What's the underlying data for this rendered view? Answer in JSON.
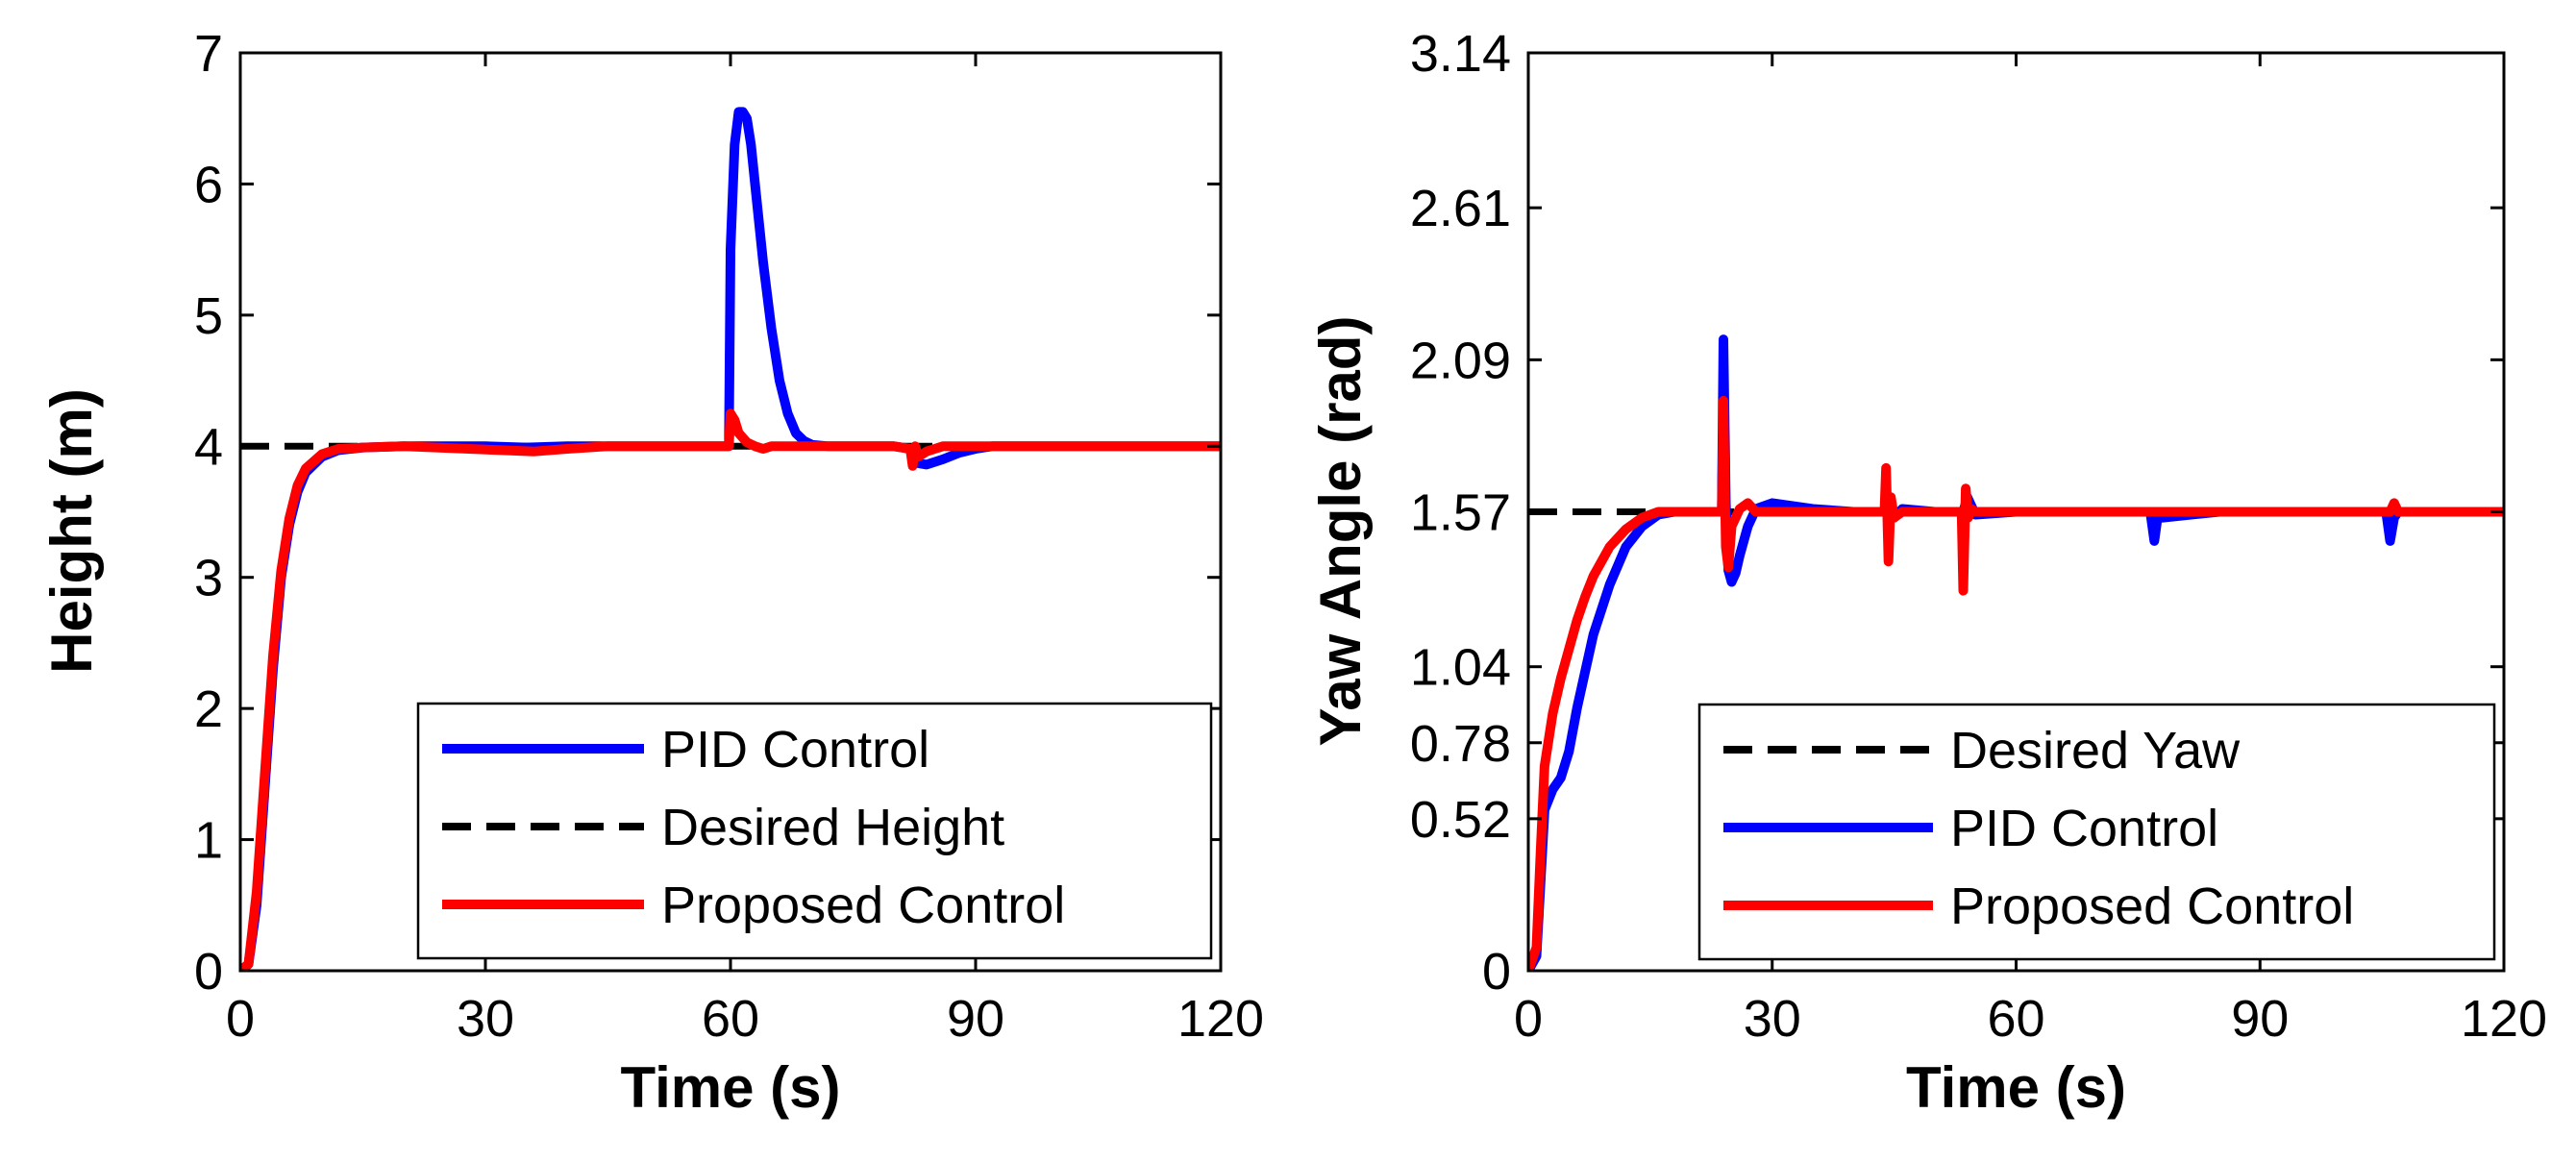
{
  "chart_data": [
    {
      "type": "line",
      "xlabel": "Time (s)",
      "ylabel": "Height (m)",
      "xlim": [
        0,
        120
      ],
      "ylim": [
        0,
        7
      ],
      "x_ticks": [
        0,
        30,
        60,
        90,
        120
      ],
      "y_ticks": [
        0,
        1,
        2,
        3,
        4,
        5,
        6,
        7
      ],
      "x_tick_labels": [
        "0",
        "30",
        "60",
        "90",
        "120"
      ],
      "y_tick_labels": [
        "0",
        "1",
        "2",
        "3",
        "4",
        "5",
        "6",
        "7"
      ],
      "legend_position": "bottom-right",
      "legend": [
        "PID Control",
        "Desired Height",
        "Proposed Control"
      ],
      "series": [
        {
          "name": "PID Control",
          "color": "#0000ff",
          "style": "solid",
          "x": [
            0,
            1,
            2,
            3,
            4,
            5,
            6,
            7,
            8,
            10,
            12,
            15,
            20,
            30,
            35,
            40,
            45,
            50,
            55,
            59.8,
            60,
            60.5,
            61,
            61.5,
            62,
            62.5,
            63,
            64,
            65,
            66,
            67,
            68,
            69,
            70,
            72,
            80,
            82,
            83,
            84,
            86,
            88,
            90,
            92,
            100,
            110,
            120
          ],
          "values": [
            0,
            0.05,
            0.5,
            1.4,
            2.3,
            3.0,
            3.4,
            3.65,
            3.8,
            3.92,
            3.97,
            3.99,
            4.0,
            4.0,
            3.99,
            4.0,
            4.0,
            4.0,
            4.0,
            4.0,
            5.5,
            6.3,
            6.55,
            6.55,
            6.5,
            6.3,
            6.0,
            5.4,
            4.9,
            4.5,
            4.25,
            4.1,
            4.04,
            4.01,
            4.0,
            4.0,
            3.98,
            3.87,
            3.86,
            3.9,
            3.95,
            3.98,
            4.0,
            4.0,
            4.0,
            4.0
          ]
        },
        {
          "name": "Desired Height",
          "color": "#000000",
          "style": "dashed",
          "x": [
            0,
            120
          ],
          "values": [
            4,
            4
          ]
        },
        {
          "name": "Proposed Control",
          "color": "#ff0000",
          "style": "solid",
          "x": [
            0,
            1,
            2,
            3,
            4,
            5,
            6,
            7,
            8,
            10,
            12,
            15,
            20,
            28,
            32,
            36,
            40,
            45,
            50,
            55,
            59.8,
            60,
            60.5,
            61,
            62,
            63,
            64,
            65,
            70,
            80,
            82,
            82.3,
            82.6,
            83,
            84,
            85,
            86,
            90,
            100,
            110,
            120
          ],
          "values": [
            0,
            0.05,
            0.6,
            1.5,
            2.4,
            3.05,
            3.45,
            3.7,
            3.83,
            3.94,
            3.98,
            3.99,
            4.0,
            3.98,
            3.97,
            3.96,
            3.98,
            4.0,
            4.0,
            4.0,
            4.0,
            4.25,
            4.2,
            4.1,
            4.03,
            4.0,
            3.98,
            4.0,
            4.0,
            4.0,
            3.98,
            3.85,
            4.0,
            3.92,
            3.96,
            3.98,
            4.0,
            4.0,
            4.0,
            4.0,
            4.0
          ]
        }
      ]
    },
    {
      "type": "line",
      "xlabel": "Time (s)",
      "ylabel": "Yaw Angle (rad)",
      "xlim": [
        0,
        120
      ],
      "ylim": [
        0,
        3.14
      ],
      "x_ticks": [
        0,
        30,
        60,
        90,
        120
      ],
      "y_ticks": [
        0,
        0.52,
        0.78,
        1.04,
        1.57,
        2.09,
        2.61,
        3.14
      ],
      "x_tick_labels": [
        "0",
        "30",
        "60",
        "90",
        "120"
      ],
      "y_tick_labels": [
        "0",
        "0.52",
        "0.78",
        "1.04",
        "1.57",
        "2.09",
        "2.61",
        "3.14"
      ],
      "legend_position": "bottom-right",
      "legend": [
        "Desired Yaw",
        "PID Control",
        "Proposed Control"
      ],
      "series": [
        {
          "name": "Desired Yaw",
          "color": "#000000",
          "style": "dashed",
          "x": [
            0,
            120
          ],
          "values": [
            1.57,
            1.57
          ]
        },
        {
          "name": "PID Control",
          "color": "#0000ff",
          "style": "solid",
          "x": [
            0,
            1,
            1.5,
            2,
            3,
            4,
            5,
            6,
            8,
            10,
            12,
            14,
            16,
            18,
            20,
            23.8,
            24,
            24.3,
            24.6,
            25,
            25.5,
            26,
            27,
            28,
            30,
            35,
            40,
            44,
            44.5,
            45,
            46,
            50,
            53.5,
            54,
            55,
            60,
            70,
            76.5,
            77,
            77.5,
            78,
            85,
            90,
            100,
            105.5,
            106,
            106.5,
            107,
            110,
            120
          ],
          "values": [
            0,
            0.05,
            0.3,
            0.55,
            0.62,
            0.66,
            0.75,
            0.9,
            1.15,
            1.32,
            1.45,
            1.52,
            1.56,
            1.57,
            1.57,
            1.57,
            2.16,
            1.6,
            1.37,
            1.33,
            1.36,
            1.42,
            1.52,
            1.58,
            1.6,
            1.58,
            1.57,
            1.57,
            1.62,
            1.55,
            1.58,
            1.57,
            1.57,
            1.62,
            1.56,
            1.57,
            1.57,
            1.57,
            1.47,
            1.57,
            1.55,
            1.57,
            1.57,
            1.57,
            1.57,
            1.47,
            1.55,
            1.57,
            1.57,
            1.57
          ]
        },
        {
          "name": "Proposed Control",
          "color": "#ff0000",
          "style": "solid",
          "x": [
            0,
            1,
            1.5,
            2,
            3,
            4,
            5,
            6,
            7,
            8,
            10,
            12,
            14,
            16,
            18,
            20,
            23.8,
            24,
            24.3,
            24.6,
            25,
            26,
            27,
            28,
            30,
            35,
            40,
            43.8,
            44,
            44.3,
            44.6,
            45,
            46,
            50,
            53.3,
            53.5,
            53.8,
            54.1,
            54.5,
            55,
            60,
            70,
            80,
            90,
            100,
            106,
            106.5,
            107,
            110,
            120
          ],
          "values": [
            0,
            0.08,
            0.4,
            0.7,
            0.88,
            1.0,
            1.1,
            1.2,
            1.28,
            1.35,
            1.45,
            1.51,
            1.55,
            1.57,
            1.57,
            1.57,
            1.57,
            1.95,
            1.45,
            1.38,
            1.52,
            1.58,
            1.6,
            1.57,
            1.57,
            1.57,
            1.57,
            1.57,
            1.72,
            1.4,
            1.62,
            1.55,
            1.57,
            1.57,
            1.57,
            1.3,
            1.65,
            1.55,
            1.58,
            1.57,
            1.57,
            1.57,
            1.57,
            1.57,
            1.57,
            1.57,
            1.6,
            1.57,
            1.57,
            1.57
          ]
        }
      ]
    }
  ]
}
